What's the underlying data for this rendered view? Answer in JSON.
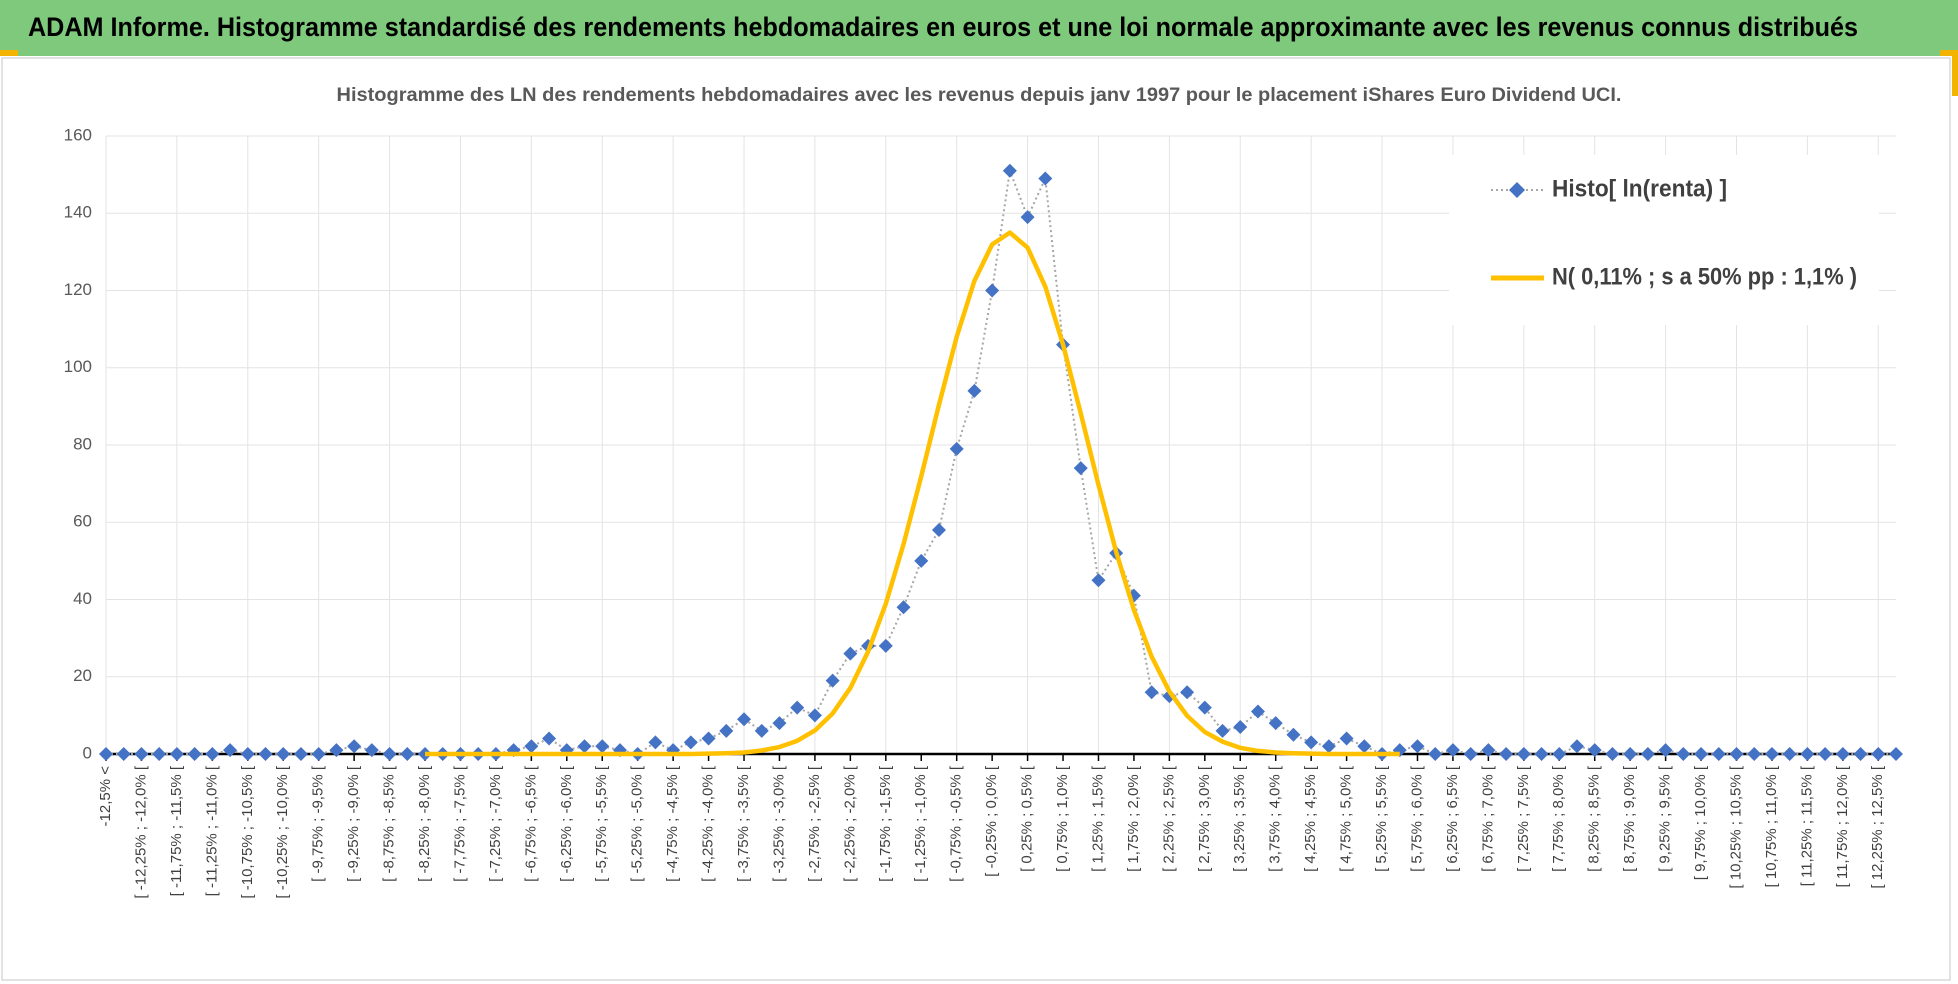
{
  "header": {
    "title": "ADAM Informe. Histogramme standardisé des rendements hebdomadaires en euros et une loi normale approximante avec les revenus connus distribués"
  },
  "chart_data": {
    "type": "line",
    "title": "Histogramme des LN des rendements hebdomadaires avec les revenus depuis janv 1997 pour le placement iShares Euro Dividend UCI.",
    "categories": [
      "-12,5% <",
      null,
      "[ -12,25% ; -12,0% [",
      null,
      "[ -11,75% ; -11,5% [",
      null,
      "[ -11,25% ; -11,0% [",
      null,
      "[ -10,75% ; -10,5% [",
      null,
      "[ -10,25% ; -10,0% [",
      null,
      "[ -9,75% ; -9,5% [",
      null,
      "[ -9,25% ; -9,0% [",
      null,
      "[ -8,75% ; -8,5% [",
      null,
      "[ -8,25% ; -8,0% [",
      null,
      "[ -7,75% ; -7,5% [",
      null,
      "[ -7,25% ; -7,0% [",
      null,
      "[ -6,75% ; -6,5% [",
      null,
      "[ -6,25% ; -6,0% [",
      null,
      "[ -5,75% ; -5,5% [",
      null,
      "[ -5,25% ; -5,0% [",
      null,
      "[ -4,75% ; -4,5% [",
      null,
      "[ -4,25% ; -4,0% [",
      null,
      "[ -3,75% ; -3,5% [",
      null,
      "[ -3,25% ; -3,0% [",
      null,
      "[ -2,75% ; -2,5% [",
      null,
      "[ -2,25% ; -2,0% [",
      null,
      "[ -1,75% ; -1,5% [",
      null,
      "[ -1,25% ; -1,0% [",
      null,
      "[ -0,75% ; -0,5% [",
      null,
      "[ -0,25% ; 0,0% [",
      null,
      "[ 0,25% ; 0,5% [",
      null,
      "[ 0,75% ; 1,0% [",
      null,
      "[ 1,25% ; 1,5% [",
      null,
      "[ 1,75% ; 2,0% [",
      null,
      "[ 2,25% ; 2,5% [",
      null,
      "[ 2,75% ; 3,0% [",
      null,
      "[ 3,25% ; 3,5% [",
      null,
      "[ 3,75% ; 4,0% [",
      null,
      "[ 4,25% ; 4,5% [",
      null,
      "[ 4,75% ; 5,0% [",
      null,
      "[ 5,25% ; 5,5% [",
      null,
      "[ 5,75% ; 6,0% [",
      null,
      "[ 6,25% ; 6,5% [",
      null,
      "[ 6,75% ; 7,0% [",
      null,
      "[ 7,25% ; 7,5% [",
      null,
      "[ 7,75% ; 8,0% [",
      null,
      "[ 8,25% ; 8,5% [",
      null,
      "[ 8,75% ; 9,0% [",
      null,
      "[ 9,25% ; 9,5% [",
      null,
      "[ 9,75% ; 10,0% [",
      null,
      "[ 10,25% ; 10,5% [",
      null,
      "[ 10,75% ; 11,0% [",
      null,
      "[ 11,25% ; 11,5% [",
      null,
      "[ 11,75% ; 12,0% [",
      null,
      "[ 12,25% ; 12,5% [",
      null
    ],
    "series": [
      {
        "name": "Histo[ ln(renta) ]",
        "color": "#4472c4",
        "line_color": "#a6a6a6",
        "line_style": "dotted",
        "marker": "diamond",
        "values": [
          0,
          0,
          0,
          0,
          0,
          0,
          0,
          1,
          0,
          0,
          0,
          0,
          0,
          1,
          2,
          1,
          0,
          0,
          0,
          0,
          0,
          0,
          0,
          1,
          2,
          4,
          1,
          2,
          2,
          1,
          0,
          3,
          1,
          3,
          4,
          6,
          9,
          6,
          8,
          12,
          10,
          19,
          26,
          28,
          28,
          38,
          50,
          58,
          79,
          94,
          120,
          151,
          139,
          149,
          106,
          74,
          45,
          52,
          41,
          16,
          15,
          16,
          12,
          6,
          7,
          11,
          8,
          5,
          3,
          2,
          4,
          2,
          0,
          1,
          2,
          0,
          1,
          0,
          1,
          0,
          0,
          0,
          0,
          2,
          1,
          0,
          0,
          0,
          1,
          0,
          0,
          0,
          0,
          0,
          0,
          0,
          0,
          0,
          0,
          0,
          0,
          0
        ]
      },
      {
        "name": "N( 0,11% ; s a 50% pp : 1,1% )",
        "color": "#ffc000",
        "line_style": "solid",
        "marker": null,
        "values": [
          null,
          null,
          null,
          null,
          null,
          null,
          null,
          null,
          null,
          null,
          null,
          null,
          null,
          null,
          null,
          null,
          null,
          null,
          0,
          0,
          0,
          0,
          0,
          0,
          0,
          0,
          0,
          0,
          0,
          0,
          0,
          0,
          0,
          0,
          0.1,
          0.2,
          0.4,
          0.9,
          1.8,
          3.4,
          6.1,
          10.5,
          17.1,
          26.5,
          38.9,
          54.3,
          71.9,
          90.4,
          108.0,
          122.5,
          131.9,
          135.0,
          131.1,
          121.0,
          106.0,
          88.2,
          69.7,
          52.3,
          37.3,
          25.2,
          16.2,
          9.9,
          5.7,
          3.2,
          1.6,
          0.8,
          0.4,
          0.2,
          0.1,
          0,
          0,
          0,
          0,
          0,
          null,
          null,
          null,
          null,
          null,
          null,
          null,
          null,
          null,
          null,
          null,
          null,
          null,
          null,
          null,
          null,
          null,
          null,
          null,
          null,
          null,
          null,
          null,
          null,
          null,
          null,
          null,
          null
        ]
      }
    ],
    "ylim": [
      0,
      160
    ],
    "yticks": [
      0,
      20,
      40,
      60,
      80,
      100,
      120,
      140,
      160
    ],
    "grid": true,
    "legend": "upper right"
  }
}
